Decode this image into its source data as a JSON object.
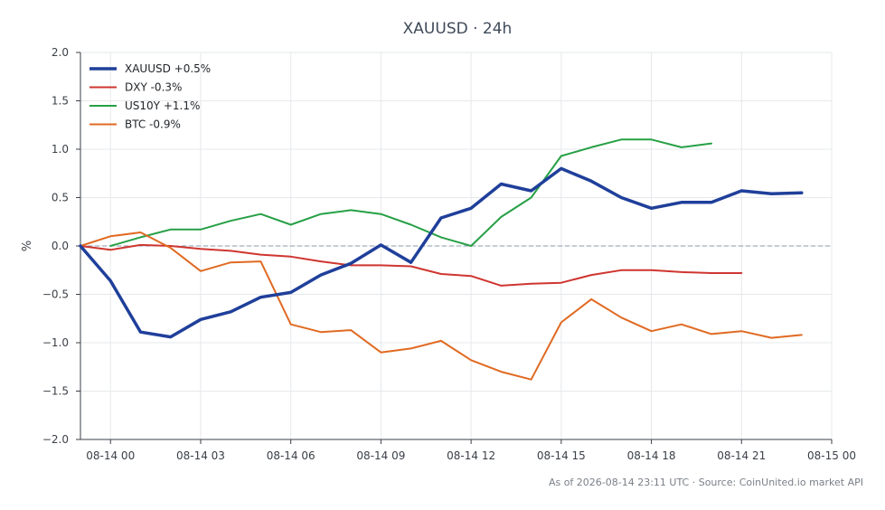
{
  "chart_data": {
    "type": "line",
    "title": "XAUUSD · 24h",
    "xlabel": "",
    "ylabel": "%",
    "ylim": [
      -2.0,
      2.0
    ],
    "yticks": [
      -2.0,
      -1.5,
      -1.0,
      -0.5,
      0.0,
      0.5,
      1.0,
      1.5,
      2.0
    ],
    "ytick_labels": [
      "−2.0",
      "−1.5",
      "−1.0",
      "−0.5",
      "0.0",
      "0.5",
      "1.0",
      "1.5",
      "2.0"
    ],
    "xlim": [
      "2026-08-13 23:00",
      "2026-08-15 00:00"
    ],
    "xticks": [
      "2026-08-14 00:00",
      "2026-08-14 03:00",
      "2026-08-14 06:00",
      "2026-08-14 09:00",
      "2026-08-14 12:00",
      "2026-08-14 15:00",
      "2026-08-14 18:00",
      "2026-08-14 21:00",
      "2026-08-15 00:00"
    ],
    "xtick_labels": [
      "08-14 00",
      "08-14 03",
      "08-14 06",
      "08-14 09",
      "08-14 12",
      "08-14 15",
      "08-14 18",
      "08-14 21",
      "08-15 00"
    ],
    "grid": true,
    "zero_line": true,
    "legend_position": "top-left",
    "series": [
      {
        "name": "XAUUSD +0.5%",
        "color": "#1f3f9a",
        "x": [
          "2026-08-13 23:00",
          "2026-08-14 00:00",
          "2026-08-14 01:00",
          "2026-08-14 02:00",
          "2026-08-14 03:00",
          "2026-08-14 04:00",
          "2026-08-14 05:00",
          "2026-08-14 06:00",
          "2026-08-14 07:00",
          "2026-08-14 08:00",
          "2026-08-14 09:00",
          "2026-08-14 10:00",
          "2026-08-14 11:00",
          "2026-08-14 12:00",
          "2026-08-14 13:00",
          "2026-08-14 14:00",
          "2026-08-14 15:00",
          "2026-08-14 16:00",
          "2026-08-14 17:00",
          "2026-08-14 18:00",
          "2026-08-14 19:00",
          "2026-08-14 20:00",
          "2026-08-14 21:00",
          "2026-08-14 22:00",
          "2026-08-14 23:00"
        ],
        "values": [
          0.0,
          -0.36,
          -0.89,
          -0.94,
          -0.76,
          -0.68,
          -0.53,
          -0.48,
          -0.3,
          -0.18,
          0.01,
          -0.17,
          0.29,
          0.39,
          0.64,
          0.57,
          0.8,
          0.67,
          0.5,
          0.39,
          0.45,
          0.45,
          0.57,
          0.54,
          0.55
        ]
      },
      {
        "name": "DXY -0.3%",
        "color": "#cf3530",
        "x": [
          "2026-08-13 23:00",
          "2026-08-14 00:00",
          "2026-08-14 01:00",
          "2026-08-14 02:00",
          "2026-08-14 03:00",
          "2026-08-14 04:00",
          "2026-08-14 05:00",
          "2026-08-14 06:00",
          "2026-08-14 07:00",
          "2026-08-14 08:00",
          "2026-08-14 09:00",
          "2026-08-14 10:00",
          "2026-08-14 11:00",
          "2026-08-14 12:00",
          "2026-08-14 13:00",
          "2026-08-14 14:00",
          "2026-08-14 15:00",
          "2026-08-14 16:00",
          "2026-08-14 17:00",
          "2026-08-14 18:00",
          "2026-08-14 19:00",
          "2026-08-14 20:00",
          "2026-08-14 21:00"
        ],
        "values": [
          0.0,
          -0.04,
          0.01,
          0.0,
          -0.03,
          -0.05,
          -0.09,
          -0.11,
          -0.16,
          -0.2,
          -0.2,
          -0.21,
          -0.29,
          -0.31,
          -0.41,
          -0.39,
          -0.38,
          -0.3,
          -0.25,
          -0.25,
          -0.27,
          -0.28,
          -0.28
        ]
      },
      {
        "name": "US10Y +1.1%",
        "color": "#27a046",
        "x": [
          "2026-08-14 00:00",
          "2026-08-14 01:00",
          "2026-08-14 02:00",
          "2026-08-14 03:00",
          "2026-08-14 04:00",
          "2026-08-14 05:00",
          "2026-08-14 06:00",
          "2026-08-14 07:00",
          "2026-08-14 08:00",
          "2026-08-14 09:00",
          "2026-08-14 10:00",
          "2026-08-14 11:00",
          "2026-08-14 12:00",
          "2026-08-14 13:00",
          "2026-08-14 14:00",
          "2026-08-14 15:00",
          "2026-08-14 16:00",
          "2026-08-14 17:00",
          "2026-08-14 18:00",
          "2026-08-14 19:00",
          "2026-08-14 20:00"
        ],
        "values": [
          0.0,
          0.09,
          0.17,
          0.17,
          0.26,
          0.33,
          0.22,
          0.33,
          0.37,
          0.33,
          0.22,
          0.09,
          0.0,
          0.3,
          0.5,
          0.93,
          1.02,
          1.1,
          1.1,
          1.02,
          1.06
        ]
      },
      {
        "name": "BTC -0.9%",
        "color": "#e06a22",
        "x": [
          "2026-08-13 23:00",
          "2026-08-14 00:00",
          "2026-08-14 01:00",
          "2026-08-14 02:00",
          "2026-08-14 03:00",
          "2026-08-14 04:00",
          "2026-08-14 05:00",
          "2026-08-14 06:00",
          "2026-08-14 07:00",
          "2026-08-14 08:00",
          "2026-08-14 09:00",
          "2026-08-14 10:00",
          "2026-08-14 11:00",
          "2026-08-14 12:00",
          "2026-08-14 13:00",
          "2026-08-14 14:00",
          "2026-08-14 15:00",
          "2026-08-14 16:00",
          "2026-08-14 17:00",
          "2026-08-14 18:00",
          "2026-08-14 19:00",
          "2026-08-14 20:00",
          "2026-08-14 21:00",
          "2026-08-14 22:00",
          "2026-08-14 23:00"
        ],
        "values": [
          0.0,
          0.1,
          0.14,
          -0.02,
          -0.26,
          -0.17,
          -0.16,
          -0.81,
          -0.89,
          -0.87,
          -1.1,
          -1.06,
          -0.98,
          -1.18,
          -1.3,
          -1.38,
          -0.79,
          -0.55,
          -0.74,
          -0.88,
          -0.81,
          -0.91,
          -0.88,
          -0.95,
          -0.92
        ]
      }
    ]
  },
  "footer": "As of 2026-08-14 23:11 UTC · Source: CoinUnited.io market API"
}
